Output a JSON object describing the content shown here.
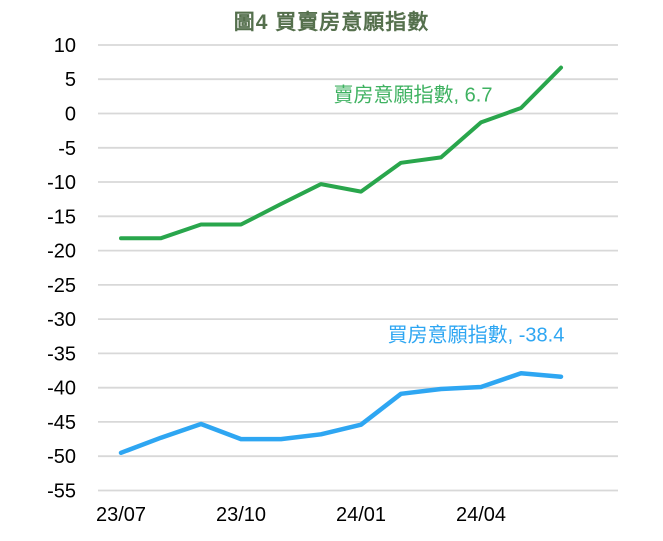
{
  "figure": {
    "title": "圖4 買賣房意願指數"
  },
  "chart_data": {
    "type": "line",
    "title": "圖4 買賣房意願指數",
    "x": [
      "23/07",
      "23/08",
      "23/09",
      "23/10",
      "23/11",
      "23/12",
      "24/01",
      "24/02",
      "24/03",
      "24/04",
      "24/05",
      "24/06"
    ],
    "xtick_labels": [
      "23/07",
      "23/10",
      "24/01",
      "24/04"
    ],
    "xtick_month_indices": [
      0,
      3,
      6,
      9
    ],
    "yticks": [
      10,
      5,
      0,
      -5,
      -10,
      -15,
      -20,
      -25,
      -30,
      -35,
      -40,
      -45,
      -50,
      -55
    ],
    "ylim": [
      -55,
      10
    ],
    "grid": "horizontal",
    "legend_position": "inline-annotations",
    "series": [
      {
        "name": "賣房意願指數",
        "end_label": "賣房意願指數, 6.7",
        "end_value": 6.7,
        "color": "#29a64c",
        "label_color": "#3fb261",
        "values": [
          -18.2,
          -18.2,
          -16.2,
          -16.2,
          -13.2,
          -10.3,
          -11.4,
          -7.2,
          -6.4,
          -1.3,
          0.8,
          6.7
        ]
      },
      {
        "name": "買房意願指數",
        "end_label": "買房意願指數, -38.4",
        "end_value": -38.4,
        "color": "#2ea6f2",
        "label_color": "#2ea6f2",
        "values": [
          -49.5,
          -47.3,
          -45.3,
          -47.5,
          -47.5,
          -46.8,
          -45.4,
          -40.9,
          -40.2,
          -39.9,
          -37.9,
          -38.4
        ]
      }
    ],
    "colors": {
      "title": "#55704d",
      "axis_labels": "#000000",
      "gridlines": "#d8d8d8",
      "background": "#ffffff"
    }
  }
}
